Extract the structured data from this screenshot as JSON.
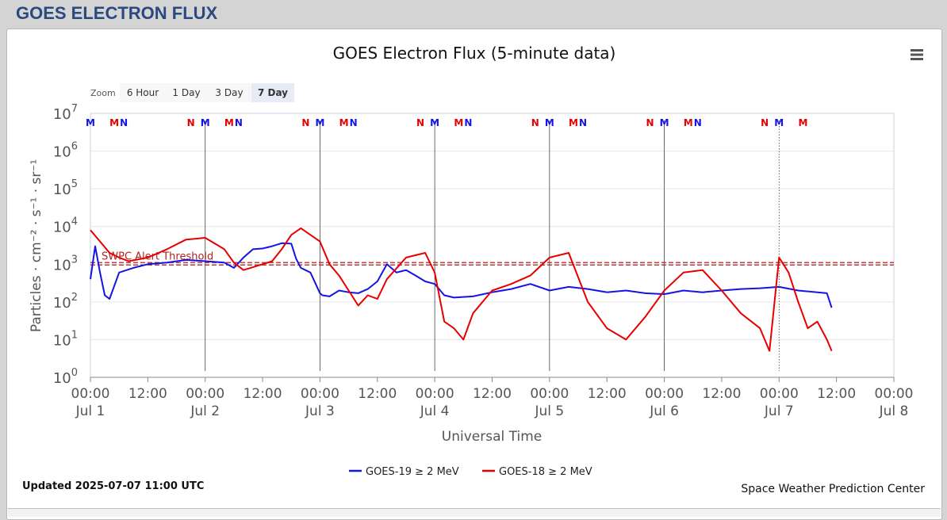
{
  "page": {
    "title": "GOES ELECTRON FLUX"
  },
  "chart_data": {
    "type": "line",
    "title": "GOES Electron Flux (5-minute data)",
    "xlabel": "Universal Time",
    "ylabel": "Particles · cm⁻² · s⁻¹ · sr⁻¹",
    "y_scale": "log",
    "ylim": [
      1,
      10000000
    ],
    "xlim": [
      "2025-07-01 00:00",
      "2025-07-08 00:00"
    ],
    "grid": true,
    "legend_position": "bottom-center",
    "y_ticks": [
      {
        "base": "10",
        "exp": "0"
      },
      {
        "base": "10",
        "exp": "1"
      },
      {
        "base": "10",
        "exp": "2"
      },
      {
        "base": "10",
        "exp": "3"
      },
      {
        "base": "10",
        "exp": "4"
      },
      {
        "base": "10",
        "exp": "5"
      },
      {
        "base": "10",
        "exp": "6"
      },
      {
        "base": "10",
        "exp": "7"
      }
    ],
    "x_ticks": [
      {
        "time": "2025-07-01 00:00",
        "label": "00:00",
        "date": "Jul 1"
      },
      {
        "time": "2025-07-01 12:00",
        "label": "12:00",
        "date": ""
      },
      {
        "time": "2025-07-02 00:00",
        "label": "00:00",
        "date": "Jul 2"
      },
      {
        "time": "2025-07-02 12:00",
        "label": "12:00",
        "date": ""
      },
      {
        "time": "2025-07-03 00:00",
        "label": "00:00",
        "date": "Jul 3"
      },
      {
        "time": "2025-07-03 12:00",
        "label": "12:00",
        "date": ""
      },
      {
        "time": "2025-07-04 00:00",
        "label": "00:00",
        "date": "Jul 4"
      },
      {
        "time": "2025-07-04 12:00",
        "label": "12:00",
        "date": ""
      },
      {
        "time": "2025-07-05 00:00",
        "label": "00:00",
        "date": "Jul 5"
      },
      {
        "time": "2025-07-05 12:00",
        "label": "12:00",
        "date": ""
      },
      {
        "time": "2025-07-06 00:00",
        "label": "00:00",
        "date": "Jul 6"
      },
      {
        "time": "2025-07-06 12:00",
        "label": "12:00",
        "date": ""
      },
      {
        "time": "2025-07-07 00:00",
        "label": "00:00",
        "date": "Jul 7"
      },
      {
        "time": "2025-07-07 12:00",
        "label": "12:00",
        "date": ""
      },
      {
        "time": "2025-07-08 00:00",
        "label": "00:00",
        "date": "Jul 8"
      }
    ],
    "threshold": {
      "label": "SWPC Alert Threshold",
      "value": 1000,
      "color": "#b22222"
    },
    "series": [
      {
        "name": "GOES-19 ≥ 2 MeV",
        "color": "#1414e6",
        "x": [
          "2025-07-01 00:00",
          "2025-07-01 01:00",
          "2025-07-01 02:00",
          "2025-07-01 03:00",
          "2025-07-01 04:00",
          "2025-07-01 06:00",
          "2025-07-01 09:00",
          "2025-07-01 12:00",
          "2025-07-01 16:00",
          "2025-07-01 20:00",
          "2025-07-02 00:00",
          "2025-07-02 04:00",
          "2025-07-02 06:00",
          "2025-07-02 08:00",
          "2025-07-02 10:00",
          "2025-07-02 12:00",
          "2025-07-02 14:00",
          "2025-07-02 16:00",
          "2025-07-02 18:00",
          "2025-07-02 19:00",
          "2025-07-02 20:00",
          "2025-07-02 22:00",
          "2025-07-03 00:00",
          "2025-07-03 00:30",
          "2025-07-03 02:00",
          "2025-07-03 04:00",
          "2025-07-03 06:00",
          "2025-07-03 08:00",
          "2025-07-03 10:00",
          "2025-07-03 12:00",
          "2025-07-03 14:00",
          "2025-07-03 16:00",
          "2025-07-03 18:00",
          "2025-07-03 20:00",
          "2025-07-03 22:00",
          "2025-07-04 00:00",
          "2025-07-04 02:00",
          "2025-07-04 04:00",
          "2025-07-04 08:00",
          "2025-07-04 12:00",
          "2025-07-04 16:00",
          "2025-07-04 20:00",
          "2025-07-05 00:00",
          "2025-07-05 04:00",
          "2025-07-05 08:00",
          "2025-07-05 12:00",
          "2025-07-05 16:00",
          "2025-07-05 20:00",
          "2025-07-06 00:00",
          "2025-07-06 04:00",
          "2025-07-06 08:00",
          "2025-07-06 12:00",
          "2025-07-06 16:00",
          "2025-07-06 20:00",
          "2025-07-07 00:00",
          "2025-07-07 04:00",
          "2025-07-07 08:00",
          "2025-07-07 10:00",
          "2025-07-07 11:00"
        ],
        "y": [
          400,
          3000,
          600,
          150,
          120,
          600,
          800,
          1000,
          1100,
          1300,
          1200,
          1100,
          800,
          1500,
          2500,
          2600,
          3000,
          3600,
          3500,
          1400,
          800,
          600,
          170,
          150,
          140,
          200,
          180,
          170,
          220,
          350,
          1000,
          600,
          700,
          500,
          350,
          300,
          150,
          130,
          140,
          180,
          220,
          300,
          200,
          250,
          220,
          180,
          200,
          170,
          160,
          200,
          180,
          200,
          220,
          230,
          250,
          200,
          180,
          170,
          70
        ]
      },
      {
        "name": "GOES-18 ≥ 2 MeV",
        "color": "#e60000",
        "x": [
          "2025-07-01 00:00",
          "2025-07-01 02:00",
          "2025-07-01 04:00",
          "2025-07-01 06:00",
          "2025-07-01 08:00",
          "2025-07-01 12:00",
          "2025-07-01 16:00",
          "2025-07-01 20:00",
          "2025-07-02 00:00",
          "2025-07-02 04:00",
          "2025-07-02 06:00",
          "2025-07-02 08:00",
          "2025-07-02 12:00",
          "2025-07-02 14:00",
          "2025-07-02 16:00",
          "2025-07-02 18:00",
          "2025-07-02 20:00",
          "2025-07-02 22:00",
          "2025-07-03 00:00",
          "2025-07-03 02:00",
          "2025-07-03 04:00",
          "2025-07-03 06:00",
          "2025-07-03 08:00",
          "2025-07-03 10:00",
          "2025-07-03 12:00",
          "2025-07-03 14:00",
          "2025-07-03 18:00",
          "2025-07-03 22:00",
          "2025-07-04 00:00",
          "2025-07-04 02:00",
          "2025-07-04 04:00",
          "2025-07-04 06:00",
          "2025-07-04 08:00",
          "2025-07-04 12:00",
          "2025-07-04 16:00",
          "2025-07-04 20:00",
          "2025-07-05 00:00",
          "2025-07-05 04:00",
          "2025-07-05 08:00",
          "2025-07-05 12:00",
          "2025-07-05 16:00",
          "2025-07-05 20:00",
          "2025-07-06 00:00",
          "2025-07-06 04:00",
          "2025-07-06 08:00",
          "2025-07-06 12:00",
          "2025-07-06 16:00",
          "2025-07-06 20:00",
          "2025-07-06 22:00",
          "2025-07-07 00:00",
          "2025-07-07 02:00",
          "2025-07-07 04:00",
          "2025-07-07 06:00",
          "2025-07-07 08:00",
          "2025-07-07 10:00",
          "2025-07-07 11:00"
        ],
        "y": [
          8000,
          4000,
          2000,
          1500,
          1200,
          1500,
          2500,
          4500,
          5000,
          2500,
          1100,
          700,
          1000,
          1200,
          2500,
          6000,
          9000,
          6000,
          4000,
          1000,
          500,
          200,
          80,
          150,
          120,
          400,
          1500,
          2000,
          600,
          30,
          20,
          10,
          50,
          200,
          300,
          500,
          1500,
          2000,
          100,
          20,
          10,
          40,
          200,
          600,
          700,
          200,
          50,
          20,
          5,
          1500,
          600,
          100,
          20,
          30,
          10,
          5
        ]
      }
    ],
    "markers": {
      "note": "Upper axis letters marking satellite local times",
      "items": [
        {
          "t": "2025-07-01 00:00",
          "letter": "M",
          "color": "#1414e6"
        },
        {
          "t": "2025-07-01 05:00",
          "letter": "M",
          "color": "#e60000"
        },
        {
          "t": "2025-07-01 07:00",
          "letter": "N",
          "color": "#1414e6"
        },
        {
          "t": "2025-07-01 21:00",
          "letter": "N",
          "color": "#e60000"
        },
        {
          "t": "2025-07-02 00:00",
          "letter": "M",
          "color": "#1414e6"
        },
        {
          "t": "2025-07-02 05:00",
          "letter": "M",
          "color": "#e60000"
        },
        {
          "t": "2025-07-02 07:00",
          "letter": "N",
          "color": "#1414e6"
        },
        {
          "t": "2025-07-02 21:00",
          "letter": "N",
          "color": "#e60000"
        },
        {
          "t": "2025-07-03 00:00",
          "letter": "M",
          "color": "#1414e6"
        },
        {
          "t": "2025-07-03 05:00",
          "letter": "M",
          "color": "#e60000"
        },
        {
          "t": "2025-07-03 07:00",
          "letter": "N",
          "color": "#1414e6"
        },
        {
          "t": "2025-07-03 21:00",
          "letter": "N",
          "color": "#e60000"
        },
        {
          "t": "2025-07-04 00:00",
          "letter": "M",
          "color": "#1414e6"
        },
        {
          "t": "2025-07-04 05:00",
          "letter": "M",
          "color": "#e60000"
        },
        {
          "t": "2025-07-04 07:00",
          "letter": "N",
          "color": "#1414e6"
        },
        {
          "t": "2025-07-04 21:00",
          "letter": "N",
          "color": "#e60000"
        },
        {
          "t": "2025-07-05 00:00",
          "letter": "M",
          "color": "#1414e6"
        },
        {
          "t": "2025-07-05 05:00",
          "letter": "M",
          "color": "#e60000"
        },
        {
          "t": "2025-07-05 07:00",
          "letter": "N",
          "color": "#1414e6"
        },
        {
          "t": "2025-07-05 21:00",
          "letter": "N",
          "color": "#e60000"
        },
        {
          "t": "2025-07-06 00:00",
          "letter": "M",
          "color": "#1414e6"
        },
        {
          "t": "2025-07-06 05:00",
          "letter": "M",
          "color": "#e60000"
        },
        {
          "t": "2025-07-06 07:00",
          "letter": "N",
          "color": "#1414e6"
        },
        {
          "t": "2025-07-06 21:00",
          "letter": "N",
          "color": "#e60000"
        },
        {
          "t": "2025-07-07 00:00",
          "letter": "M",
          "color": "#1414e6"
        },
        {
          "t": "2025-07-07 05:00",
          "letter": "M",
          "color": "#e60000"
        }
      ]
    }
  },
  "zoom": {
    "label": "Zoom",
    "buttons": [
      {
        "label": "6 Hour",
        "selected": false
      },
      {
        "label": "1 Day",
        "selected": false
      },
      {
        "label": "3 Day",
        "selected": false
      },
      {
        "label": "7 Day",
        "selected": true
      }
    ]
  },
  "footer": {
    "updated": "Updated 2025-07-07 11:00 UTC",
    "credit": "Space Weather Prediction Center"
  },
  "icons": {
    "menu": "hamburger-menu-icon"
  },
  "colors": {
    "title_blue": "#2a4a7f",
    "series1": "#1414e6",
    "series2": "#e60000",
    "threshold": "#b22222"
  }
}
